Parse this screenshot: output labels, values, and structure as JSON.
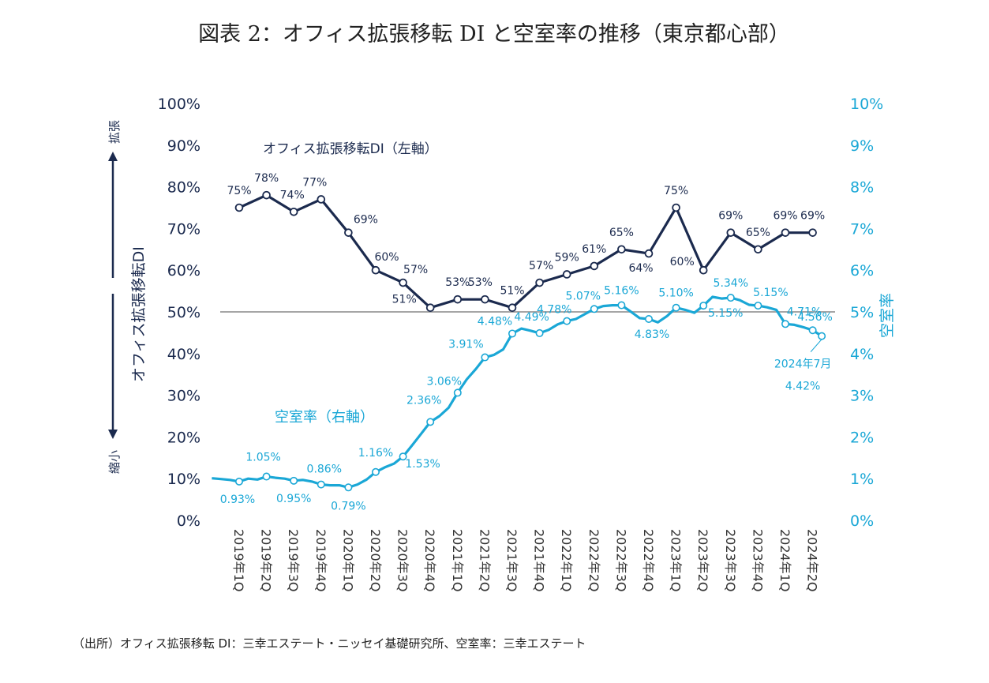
{
  "chart_data": {
    "type": "line",
    "title": "図表 2：オフィス拡張移転 DI と空室率の推移（東京都心部）",
    "categories": [
      "2019年1Q",
      "2019年2Q",
      "2019年3Q",
      "2019年4Q",
      "2020年1Q",
      "2020年2Q",
      "2020年3Q",
      "2020年4Q",
      "2021年1Q",
      "2021年2Q",
      "2021年3Q",
      "2021年4Q",
      "2022年1Q",
      "2022年2Q",
      "2022年3Q",
      "2022年4Q",
      "2023年1Q",
      "2023年2Q",
      "2023年3Q",
      "2023年4Q",
      "2024年1Q",
      "2024年2Q"
    ],
    "left_axis": {
      "title": "オフィス拡張移転DI",
      "ticks": [
        "0%",
        "10%",
        "20%",
        "30%",
        "40%",
        "50%",
        "60%",
        "70%",
        "80%",
        "90%",
        "100%"
      ],
      "ylim": [
        0,
        100
      ]
    },
    "right_axis": {
      "title": "空室率",
      "ticks": [
        "0%",
        "1%",
        "2%",
        "3%",
        "4%",
        "5%",
        "6%",
        "7%",
        "8%",
        "9%",
        "10%"
      ],
      "ylim": [
        0,
        10
      ]
    },
    "reference_line": 50,
    "arrow_labels": {
      "up": "拡張",
      "down": "縮小"
    },
    "series": [
      {
        "name": "オフィス拡張移転DI（左軸）",
        "axis": "left",
        "color": "#1b2a4e",
        "values": [
          75,
          78,
          74,
          77,
          69,
          60,
          57,
          51,
          53,
          53,
          51,
          57,
          59,
          61,
          65,
          64,
          75,
          60,
          69,
          65,
          69,
          69
        ],
        "labels": [
          "75%",
          "78%",
          "74%",
          "77%",
          "69%",
          "60%",
          "57%",
          "51%",
          "53%",
          "53%",
          "51%",
          "57%",
          "59%",
          "61%",
          "65%",
          "64%",
          "75%",
          "60%",
          "69%",
          "65%",
          "69%",
          "69%"
        ]
      },
      {
        "name": "空室率（右軸）",
        "axis": "right",
        "color": "#1aa7d6",
        "x": [
          -1,
          -0.667,
          -0.333,
          0,
          0.333,
          0.667,
          1,
          1.333,
          1.667,
          2,
          2.333,
          2.667,
          3,
          3.333,
          3.667,
          4,
          4.333,
          4.667,
          5,
          5.333,
          5.667,
          6,
          6.333,
          6.667,
          7,
          7.333,
          7.667,
          8,
          8.333,
          8.667,
          9,
          9.333,
          9.667,
          10,
          10.333,
          10.667,
          11,
          11.333,
          11.667,
          12,
          12.333,
          12.667,
          13,
          13.333,
          13.667,
          14,
          14.333,
          14.667,
          15,
          15.333,
          15.667,
          16,
          16.333,
          16.667,
          17,
          17.333,
          17.667,
          18,
          18.333,
          18.667,
          19,
          19.333,
          19.667,
          20,
          20.333,
          20.667,
          21,
          21.333
        ],
        "values": [
          1.01,
          0.99,
          0.97,
          0.93,
          1.0,
          0.98,
          1.05,
          1.02,
          1.0,
          0.95,
          0.97,
          0.93,
          0.86,
          0.84,
          0.84,
          0.79,
          0.86,
          0.98,
          1.16,
          1.27,
          1.36,
          1.53,
          1.8,
          2.08,
          2.36,
          2.5,
          2.7,
          3.06,
          3.38,
          3.63,
          3.91,
          3.97,
          4.1,
          4.48,
          4.6,
          4.55,
          4.49,
          4.57,
          4.7,
          4.78,
          4.83,
          4.95,
          5.07,
          5.14,
          5.16,
          5.16,
          5.01,
          4.85,
          4.83,
          4.75,
          4.9,
          5.1,
          5.05,
          4.98,
          5.15,
          5.36,
          5.32,
          5.34,
          5.28,
          5.17,
          5.15,
          5.11,
          5.05,
          4.71,
          4.69,
          4.63,
          4.56,
          4.42
        ],
        "marker_index": [
          3,
          6,
          9,
          12,
          15,
          18,
          21,
          24,
          27,
          30,
          33,
          36,
          39,
          42,
          45,
          48,
          51,
          54,
          57,
          60,
          63,
          66,
          67
        ],
        "labels": [
          {
            "i": 3,
            "text": "0.93%"
          },
          {
            "i": 6,
            "text": "1.05%"
          },
          {
            "i": 9,
            "text": "0.95%"
          },
          {
            "i": 12,
            "text": "0.86%"
          },
          {
            "i": 15,
            "text": "0.79%"
          },
          {
            "i": 18,
            "text": "1.16%"
          },
          {
            "i": 21,
            "text": "1.53%"
          },
          {
            "i": 24,
            "text": "2.36%"
          },
          {
            "i": 27,
            "text": "3.06%"
          },
          {
            "i": 30,
            "text": "3.91%"
          },
          {
            "i": 33,
            "text": "4.48%"
          },
          {
            "i": 36,
            "text": "4.49%"
          },
          {
            "i": 39,
            "text": "4.78%"
          },
          {
            "i": 42,
            "text": "5.07%"
          },
          {
            "i": 45,
            "text": "5.16%"
          },
          {
            "i": 48,
            "text": "4.83%"
          },
          {
            "i": 51,
            "text": "5.10%"
          },
          {
            "i": 54,
            "text": "5.15%"
          },
          {
            "i": 57,
            "text": "5.34%"
          },
          {
            "i": 60,
            "text": "5.15%"
          },
          {
            "i": 63,
            "text": "4.71%"
          },
          {
            "i": 66,
            "text": "4.56%"
          }
        ],
        "callout": {
          "i": 67,
          "line1": "2024年7月",
          "line2": "4.42%"
        }
      }
    ],
    "source": "（出所）オフィス拡張移転 DI：三幸エステート・ニッセイ基礎研究所、空室率：三幸エステート"
  }
}
